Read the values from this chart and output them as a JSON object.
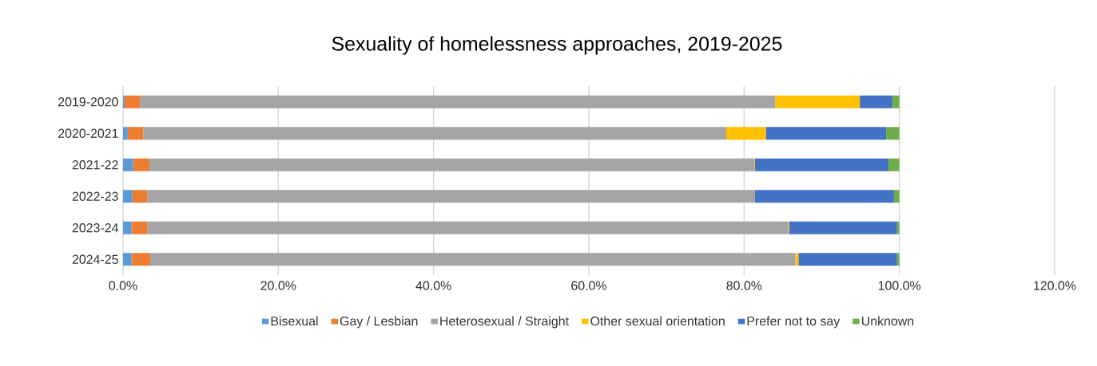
{
  "chart_data": {
    "type": "bar",
    "title": "Sexuality of homelessness approaches, 2019-2025",
    "orientation": "horizontal",
    "stacked": true,
    "categories": [
      "2019-2020",
      "2020-2021",
      "2021-22",
      "2022-23",
      "2023-24",
      "2024-25"
    ],
    "series": [
      {
        "name": "Bisexual",
        "color": "#5b9bd5",
        "values": [
          0.2,
          0.6,
          1.3,
          1.2,
          1.1,
          1.1
        ]
      },
      {
        "name": "Gay / Lesbian",
        "color": "#ed7d31",
        "values": [
          2.0,
          2.0,
          2.1,
          1.9,
          2.0,
          2.4
        ]
      },
      {
        "name": "Heterosexual / Straight",
        "color": "#a5a5a5",
        "values": [
          81.8,
          75.1,
          77.9,
          78.3,
          82.6,
          83.1
        ]
      },
      {
        "name": "Other sexual orientation",
        "color": "#ffc000",
        "values": [
          10.9,
          5.1,
          0.1,
          0.0,
          0.1,
          0.4
        ]
      },
      {
        "name": "Prefer not to say",
        "color": "#4472c4",
        "values": [
          4.2,
          15.5,
          17.2,
          17.9,
          13.9,
          12.7
        ]
      },
      {
        "name": "Unknown",
        "color": "#70ad47",
        "values": [
          0.9,
          1.7,
          1.4,
          0.7,
          0.3,
          0.3
        ]
      }
    ],
    "xlim": [
      0,
      120
    ],
    "xticks": [
      {
        "value": 0,
        "label": "0.0%"
      },
      {
        "value": 20,
        "label": "20.0%"
      },
      {
        "value": 40,
        "label": "40.0%"
      },
      {
        "value": 60,
        "label": "60.0%"
      },
      {
        "value": 80,
        "label": "80.0%"
      },
      {
        "value": 100,
        "label": "100.0%"
      },
      {
        "value": 120,
        "label": "120.0%"
      }
    ],
    "grid": "x",
    "legend": "bottom"
  }
}
